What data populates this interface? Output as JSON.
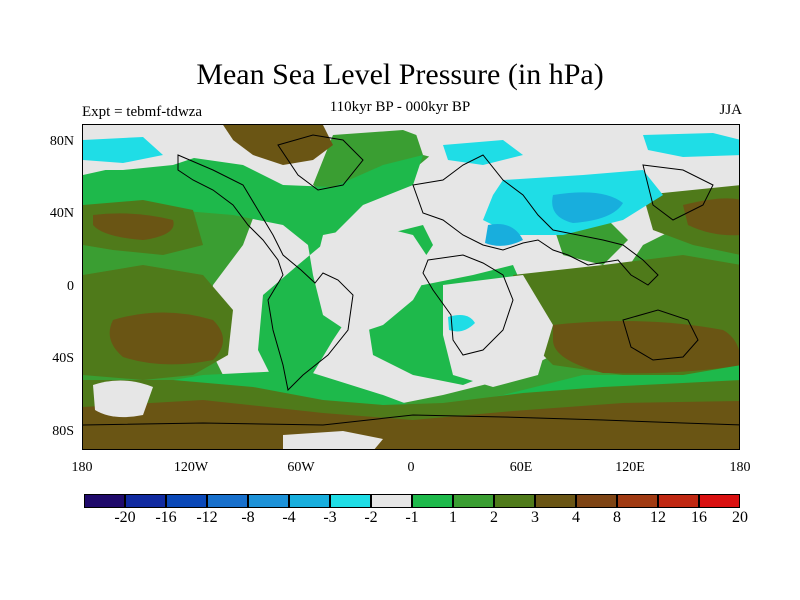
{
  "title": "Mean Sea Level Pressure (in hPa)",
  "subtitle": "110kyr BP - 000kyr BP",
  "expt": "Expt = tebmf-tdwza",
  "season": "JJA",
  "lat_labels": [
    "80N",
    "40N",
    "0",
    "40S",
    "80S"
  ],
  "lon_labels": [
    "180",
    "120W",
    "60W",
    "0",
    "60E",
    "120E",
    "180"
  ],
  "colorbar": {
    "colors": [
      "#1f0a6b",
      "#102aa0",
      "#0a48b8",
      "#1870cc",
      "#1d92d8",
      "#18aedd",
      "#1fdde6",
      "#e6e6e6",
      "#1eb94b",
      "#3a9e32",
      "#4f7a1a",
      "#6a5514",
      "#7e4414",
      "#a03a12",
      "#c02812",
      "#d91010"
    ],
    "labels": [
      "-20",
      "-16",
      "-12",
      "-8",
      "-4",
      "-3",
      "-2",
      "-1",
      "1",
      "2",
      "3",
      "4",
      "8",
      "12",
      "16",
      "20"
    ]
  }
}
